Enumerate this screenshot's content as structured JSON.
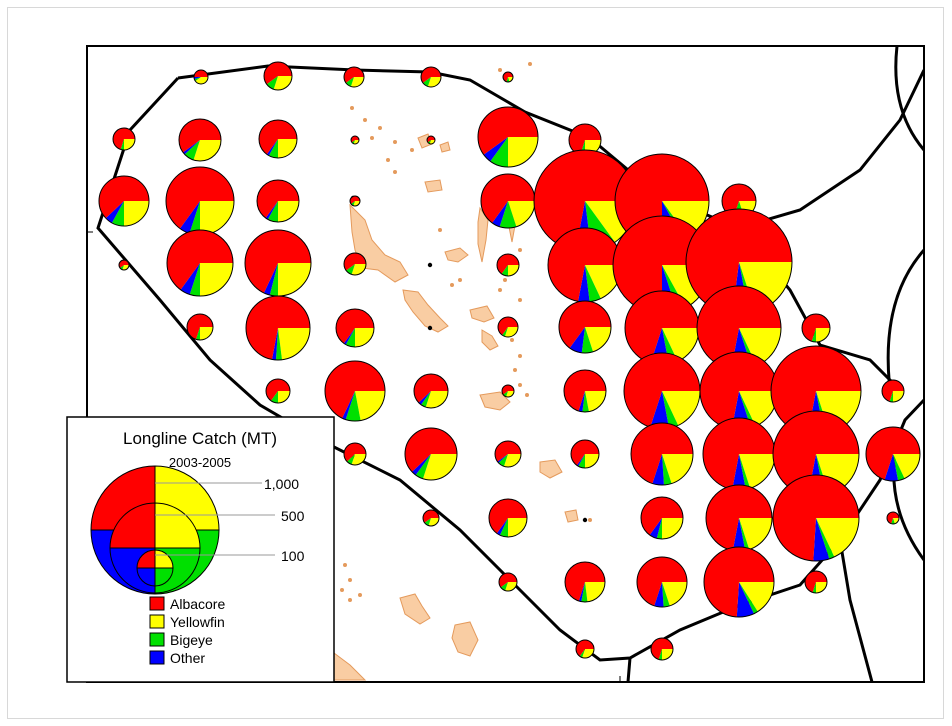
{
  "map": {
    "legend": {
      "title": "Longline Catch (MT)",
      "subtitle": "2003-2005",
      "size_labels": [
        "1,000",
        "500",
        "100"
      ],
      "species": [
        {
          "name": "Albacore",
          "color": "#ff0000"
        },
        {
          "name": "Yellowfin",
          "color": "#ffff00"
        },
        {
          "name": "Bigeye",
          "color": "#00e000"
        },
        {
          "name": "Other",
          "color": "#0000ff"
        }
      ]
    },
    "colors": {
      "land": "#f9cda3",
      "land_outline": "#e49a5c",
      "boundary": "#000000",
      "pie_outline": "#000000"
    },
    "chart_data": {
      "type": "pie-map",
      "series": [
        "Albacore",
        "Yellowfin",
        "Bigeye",
        "Other"
      ],
      "legend_reference_catch_mt": [
        1000,
        500,
        100
      ],
      "note_units": "catch in metric tonnes"
    }
  }
}
